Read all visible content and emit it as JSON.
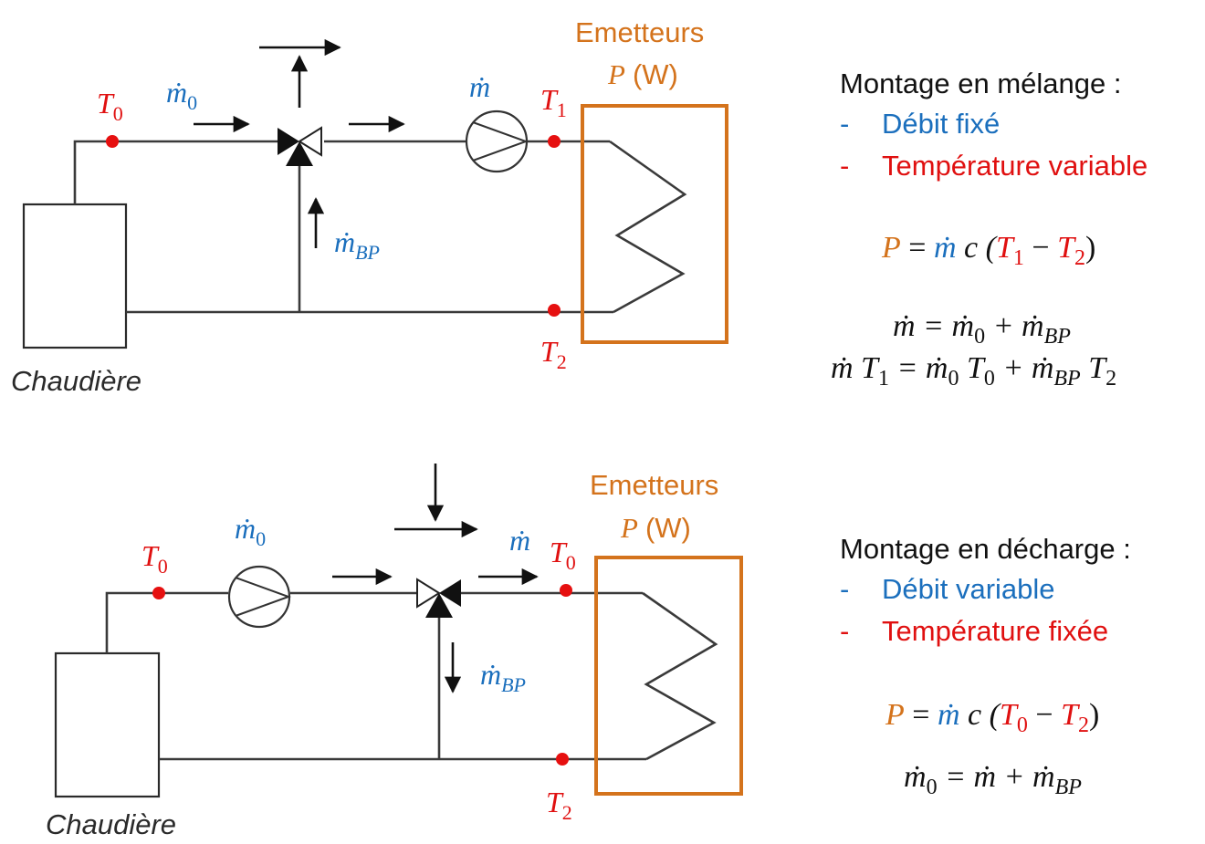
{
  "colors": {
    "temperature": "#e01010",
    "flow": "#1b6fbd",
    "power": "#d4731c",
    "lines": "#3a3a3a"
  },
  "diagram_top": {
    "boiler_label": "Chaudière",
    "emitter_title": "Emetteurs",
    "emitter_power_symbol": "P",
    "emitter_power_unit": "(W)",
    "t0": "T",
    "t0_sub": "0",
    "t1": "T",
    "t1_sub": "1",
    "t2": "T",
    "t2_sub": "2",
    "m0": "ṁ",
    "m0_sub": "0",
    "m": "ṁ",
    "mbp": "ṁ",
    "mbp_sub": "BP"
  },
  "diagram_bottom": {
    "boiler_label": "Chaudière",
    "emitter_title": "Emetteurs",
    "emitter_power_symbol": "P",
    "emitter_power_unit": "(W)",
    "t0_left": "T",
    "t0_left_sub": "0",
    "t0_right": "T",
    "t0_right_sub": "0",
    "t2": "T",
    "t2_sub": "2",
    "m0": "ṁ",
    "m0_sub": "0",
    "m": "ṁ",
    "mbp": "ṁ",
    "mbp_sub": "BP"
  },
  "panel_top": {
    "title": "Montage en mélange :",
    "bullet": "-",
    "item1": "Débit fixé",
    "item2": "Température variable",
    "eq1": {
      "P": "P",
      "eqs": " = ",
      "m": "ṁ",
      "c": " c (",
      "T1": "T",
      "T1s": "1",
      "minus": " − ",
      "T2": "T",
      "T2s": "2",
      "close": ")"
    },
    "eq2": {
      "lhs": "ṁ = ṁ",
      "s0": "0",
      "plus": " + ṁ",
      "sbp": "BP"
    },
    "eq3": {
      "a": "ṁ T",
      "a1": "1",
      "b": " = ṁ",
      "b0": "0",
      "c": " T",
      "c0": "0",
      "d": " + ṁ",
      "dbp": "BP",
      "e": " T",
      "e2": "2"
    }
  },
  "panel_bottom": {
    "title": "Montage en décharge :",
    "bullet": "-",
    "item1": "Débit variable",
    "item2": "Température fixée",
    "eq1": {
      "P": "P",
      "eqs": " = ",
      "m": "ṁ",
      "c": " c (",
      "T0": "T",
      "T0s": "0",
      "minus": " − ",
      "T2": "T",
      "T2s": "2",
      "close": ")"
    },
    "eq2": {
      "lhs": "ṁ",
      "s0": "0",
      "rest": " = ṁ + ṁ",
      "sbp": "BP"
    }
  }
}
